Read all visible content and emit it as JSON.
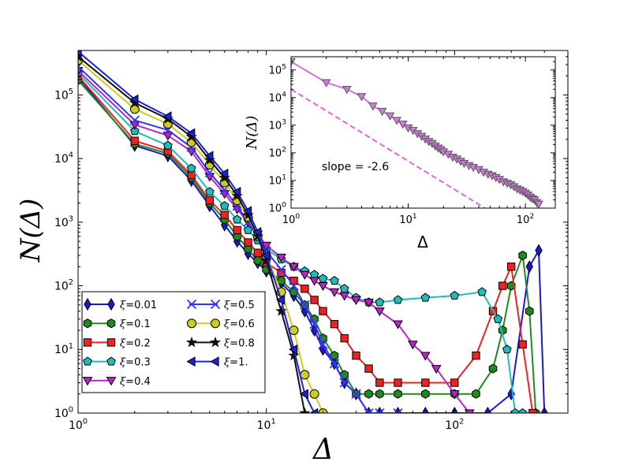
{
  "chart_data": [
    {
      "type": "line",
      "panel": "main",
      "xscale": "log",
      "yscale": "log",
      "xlim": [
        1,
        400
      ],
      "ylim": [
        1,
        500000
      ],
      "xlabel": "Δ",
      "ylabel": "N(Δ)",
      "xticks": [
        {
          "value": 1,
          "base": "10",
          "exp": "0"
        },
        {
          "value": 10,
          "base": "10",
          "exp": "1"
        },
        {
          "value": 100,
          "base": "10",
          "exp": "2"
        }
      ],
      "yticks": [
        {
          "value": 1,
          "base": "10",
          "exp": "0"
        },
        {
          "value": 10,
          "base": "10",
          "exp": "1"
        },
        {
          "value": 100,
          "base": "10",
          "exp": "2"
        },
        {
          "value": 1000,
          "base": "10",
          "exp": "3"
        },
        {
          "value": 10000,
          "base": "10",
          "exp": "4"
        },
        {
          "value": 100000,
          "base": "10",
          "exp": "5"
        }
      ],
      "legend_position": "lower-left",
      "series": [
        {
          "name": "ξ=0.01",
          "label_value": "0.01",
          "color": "#1a1acc",
          "marker": "diamond",
          "x": [
            1,
            2,
            3,
            4,
            5,
            6,
            7,
            8,
            9,
            10,
            12,
            14,
            16,
            18,
            20,
            23,
            26,
            30,
            35,
            40,
            50,
            70,
            100,
            150,
            200,
            250,
            280,
            300
          ],
          "y": [
            190000,
            16000,
            11000,
            4500,
            1800,
            900,
            500,
            320,
            230,
            170,
            110,
            70,
            40,
            20,
            10,
            6,
            3,
            2,
            1,
            1,
            1,
            1,
            1,
            1,
            2,
            200,
            360,
            1
          ]
        },
        {
          "name": "ξ=0.1",
          "label_value": "0.1",
          "color": "#228822",
          "marker": "hexagon",
          "x": [
            1,
            2,
            3,
            4,
            5,
            6,
            7,
            8,
            9,
            10,
            12,
            14,
            16,
            18,
            20,
            23,
            26,
            30,
            35,
            40,
            50,
            70,
            100,
            130,
            160,
            180,
            200,
            230,
            250,
            270
          ],
          "y": [
            170000,
            17000,
            12000,
            5000,
            2000,
            1100,
            600,
            380,
            250,
            180,
            120,
            80,
            50,
            30,
            15,
            8,
            4,
            2,
            2,
            2,
            2,
            2,
            2,
            2,
            5,
            20,
            100,
            300,
            40,
            1
          ]
        },
        {
          "name": "ξ=0.2",
          "label_value": "0.2",
          "color": "#ee2222",
          "marker": "square",
          "x": [
            1,
            2,
            3,
            4,
            5,
            6,
            7,
            8,
            9,
            10,
            12,
            14,
            16,
            18,
            20,
            23,
            26,
            30,
            35,
            40,
            50,
            70,
            100,
            130,
            160,
            180,
            200,
            230,
            260
          ],
          "y": [
            200000,
            19000,
            13000,
            5500,
            2200,
            1300,
            750,
            480,
            330,
            230,
            160,
            120,
            90,
            60,
            40,
            25,
            15,
            8,
            5,
            3,
            3,
            3,
            3,
            8,
            40,
            100,
            200,
            12,
            1
          ]
        },
        {
          "name": "ξ=0.3",
          "label_value": "0.3",
          "color": "#22bbbb",
          "marker": "pentagon",
          "x": [
            1,
            2,
            3,
            4,
            5,
            6,
            7,
            8,
            9,
            10,
            12,
            14,
            16,
            18,
            20,
            23,
            26,
            30,
            35,
            40,
            50,
            70,
            100,
            140,
            170,
            190,
            210,
            230
          ],
          "y": [
            220000,
            27000,
            16000,
            7000,
            3000,
            1800,
            1100,
            750,
            520,
            380,
            260,
            200,
            170,
            150,
            130,
            120,
            90,
            65,
            55,
            55,
            60,
            65,
            70,
            80,
            30,
            10,
            1,
            1
          ]
        },
        {
          "name": "ξ=0.4",
          "label_value": "0.4",
          "color": "#bb22cc",
          "marker": "triangle-down",
          "x": [
            1,
            2,
            3,
            4,
            5,
            6,
            7,
            8,
            9,
            10,
            12,
            14,
            16,
            18,
            20,
            23,
            26,
            30,
            35,
            40,
            50,
            60,
            70,
            80,
            100,
            120
          ],
          "y": [
            240000,
            34000,
            23000,
            13000,
            5200,
            2800,
            1600,
            1000,
            650,
            430,
            280,
            200,
            150,
            120,
            100,
            80,
            70,
            60,
            55,
            40,
            25,
            12,
            8,
            5,
            2,
            1
          ]
        },
        {
          "name": "ξ=0.5",
          "label_value": "0.5",
          "color": "#3333ff",
          "marker": "x",
          "x": [
            1,
            2,
            3,
            4,
            5,
            6,
            7,
            8,
            9,
            10,
            12,
            14,
            16,
            18,
            20,
            23,
            26,
            30,
            35,
            40,
            50
          ],
          "y": [
            280000,
            40000,
            28000,
            15000,
            6000,
            3200,
            1800,
            1000,
            600,
            350,
            180,
            100,
            50,
            25,
            12,
            6,
            3,
            2,
            1,
            1,
            1
          ]
        },
        {
          "name": "ξ=0.6",
          "label_value": "0.6",
          "color": "#cccc22",
          "marker": "circle",
          "x": [
            1,
            2,
            3,
            4,
            5,
            6,
            7,
            8,
            9,
            10,
            12,
            14,
            16,
            18,
            20
          ],
          "y": [
            350000,
            60000,
            35000,
            18000,
            8000,
            4200,
            2200,
            1200,
            600,
            300,
            80,
            20,
            4,
            2,
            1
          ]
        },
        {
          "name": "ξ=0.8",
          "label_value": "0.8",
          "color": "#111111",
          "marker": "star",
          "x": [
            1,
            2,
            3,
            4,
            5,
            6,
            7,
            8,
            9,
            10,
            12,
            14,
            16
          ],
          "y": [
            400000,
            75000,
            42000,
            22000,
            9500,
            5000,
            2600,
            1300,
            600,
            250,
            40,
            8,
            1
          ]
        },
        {
          "name": "ξ=1.",
          "label_value": "1.",
          "color": "#1a22dd",
          "marker": "triangle-left",
          "x": [
            1,
            2,
            3,
            4,
            5,
            6,
            7,
            8,
            9,
            10,
            12,
            14,
            16,
            18
          ],
          "y": [
            480000,
            85000,
            46000,
            25000,
            11000,
            5800,
            3000,
            1500,
            700,
            300,
            60,
            10,
            2,
            1
          ]
        }
      ]
    },
    {
      "type": "line",
      "panel": "inset",
      "xscale": "log",
      "yscale": "log",
      "xlim": [
        1,
        180
      ],
      "ylim": [
        1,
        300000
      ],
      "xlabel": "Δ",
      "ylabel": "N(Δ)",
      "xticks": [
        {
          "value": 1,
          "base": "10",
          "exp": "0"
        },
        {
          "value": 10,
          "base": "10",
          "exp": "1"
        },
        {
          "value": 100,
          "base": "10",
          "exp": "2"
        }
      ],
      "yticks": [
        {
          "value": 1,
          "base": "10",
          "exp": "0"
        },
        {
          "value": 10,
          "base": "10",
          "exp": "1"
        },
        {
          "value": 100,
          "base": "10",
          "exp": "2"
        },
        {
          "value": 1000,
          "base": "10",
          "exp": "3"
        },
        {
          "value": 10000,
          "base": "10",
          "exp": "4"
        },
        {
          "value": 100000,
          "base": "10",
          "exp": "5"
        }
      ],
      "annotation": "slope = -2.6",
      "fit": {
        "slope": -2.6,
        "intercept": 20000,
        "color": "#dd66dd"
      },
      "series": [
        {
          "name": "data",
          "color": "#bb44cc",
          "marker": "triangle-down",
          "x": [
            1,
            2,
            3,
            4,
            5,
            6,
            7,
            8,
            9,
            10,
            11,
            12,
            13,
            14,
            15,
            16,
            17,
            18,
            19,
            20,
            22,
            24,
            26,
            28,
            30,
            33,
            36,
            40,
            44,
            48,
            52,
            56,
            60,
            65,
            70,
            75,
            80,
            85,
            90,
            95,
            100,
            105,
            110,
            115,
            120,
            125,
            130
          ],
          "y": [
            200000,
            35000,
            20000,
            11000,
            5000,
            3200,
            2200,
            1500,
            1100,
            800,
            650,
            500,
            400,
            320,
            260,
            220,
            180,
            150,
            130,
            110,
            90,
            70,
            60,
            50,
            42,
            35,
            30,
            25,
            20,
            17,
            15,
            13,
            11,
            9,
            8,
            7,
            6,
            5,
            4.5,
            4,
            3.5,
            3,
            2.5,
            2.2,
            2,
            1.6,
            1.4
          ]
        }
      ]
    }
  ]
}
